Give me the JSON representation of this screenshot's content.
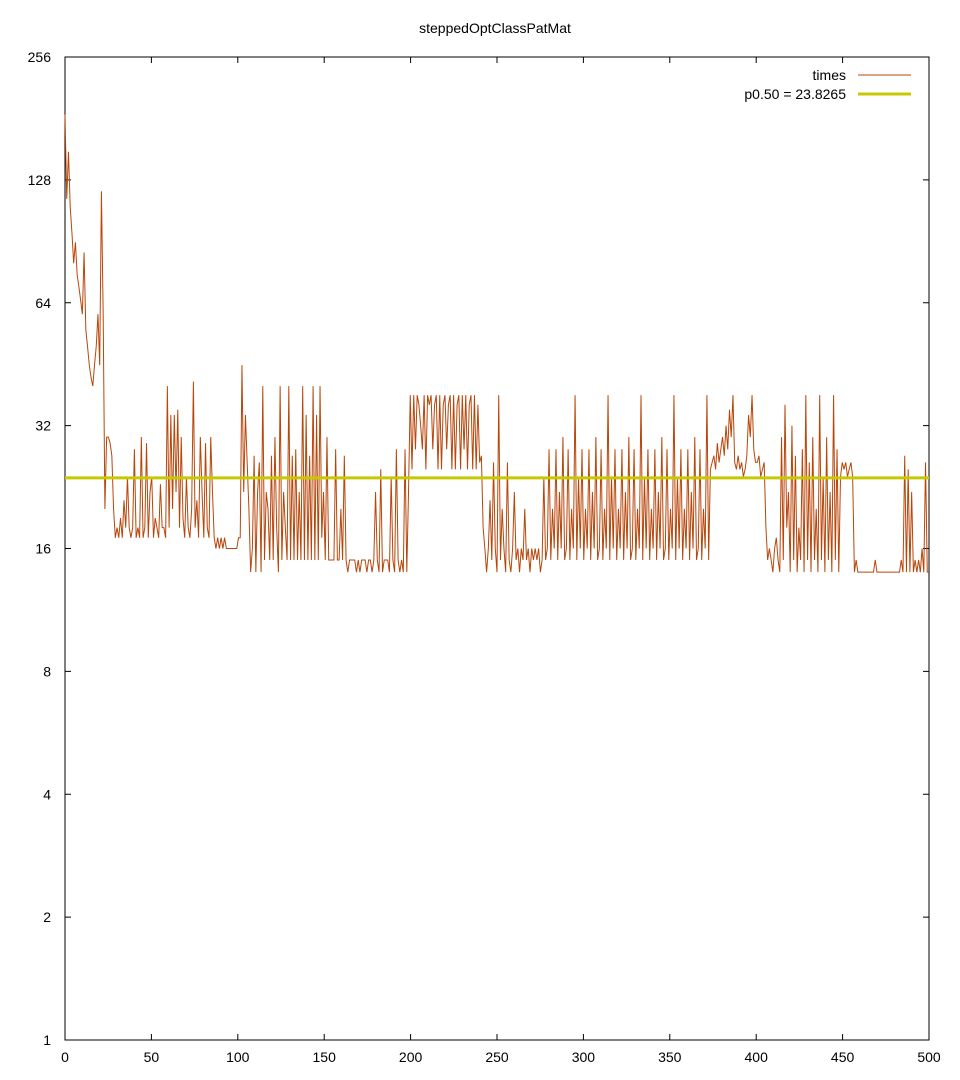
{
  "chart_data": {
    "type": "line",
    "title": "steppedOptClassPatMat",
    "xlabel": "",
    "ylabel": "",
    "xlim": [
      0,
      500
    ],
    "ylim": [
      1,
      256
    ],
    "yscale": "log2",
    "x_ticks": [
      "0",
      "50",
      "100",
      "150",
      "200",
      "250",
      "300",
      "350",
      "400",
      "450",
      "500"
    ],
    "y_ticks": [
      "1",
      "2",
      "4",
      "8",
      "16",
      "32",
      "64",
      "128",
      "256"
    ],
    "grid": false,
    "legend_position": "top-right",
    "colors": {
      "times": "#b8460b",
      "median": "#c8c800"
    },
    "series": [
      {
        "name": "times",
        "color": "#b8460b",
        "values": [
          185,
          115,
          150,
          110,
          95,
          80,
          90,
          75,
          70,
          65,
          60,
          85,
          55,
          50,
          45,
          42,
          40,
          45,
          50,
          60,
          45,
          120,
          60,
          20,
          30,
          30,
          29,
          27,
          20,
          17,
          18,
          17,
          19,
          17,
          21,
          18,
          24,
          18,
          17,
          18,
          28,
          17,
          18,
          17,
          30,
          17,
          18,
          29,
          17,
          22,
          24,
          17,
          19,
          18,
          17,
          23,
          18,
          18,
          17,
          40,
          18,
          34,
          20,
          34,
          22,
          35,
          18,
          30,
          19,
          17,
          24,
          18,
          17,
          20,
          41,
          18,
          21,
          17,
          30,
          22,
          17,
          29,
          18,
          17,
          30,
          22,
          17,
          16,
          17,
          16,
          17,
          16,
          17,
          16,
          16,
          16,
          16,
          16,
          16,
          16,
          17,
          17,
          45,
          22,
          34,
          26,
          20,
          14,
          16,
          27,
          14,
          22,
          26,
          14,
          40,
          15,
          22,
          20,
          15,
          27,
          15,
          30,
          18,
          14,
          40,
          15,
          22,
          18,
          15,
          40,
          15,
          27,
          15,
          28,
          15,
          22,
          15,
          40,
          15,
          34,
          15,
          27,
          15,
          40,
          15,
          34,
          15,
          40,
          17,
          22,
          15,
          30,
          15,
          15,
          15,
          15,
          28,
          15,
          15,
          20,
          15,
          27,
          15,
          14,
          15,
          15,
          15,
          15,
          14,
          15,
          14,
          15,
          15,
          15,
          14,
          15,
          15,
          14,
          15,
          22,
          15,
          14,
          25,
          14,
          15,
          15,
          15,
          14,
          24,
          15,
          14,
          28,
          15,
          14,
          15,
          14,
          28,
          14,
          22,
          38,
          25,
          38,
          28,
          38,
          36,
          32,
          28,
          38,
          25,
          38,
          36,
          38,
          28,
          36,
          38,
          25,
          38,
          25,
          36,
          38,
          28,
          36,
          38,
          25,
          38,
          25,
          36,
          38,
          25,
          38,
          28,
          38,
          25,
          36,
          38,
          25,
          38,
          25,
          36,
          26,
          27,
          18,
          16,
          14,
          16,
          21,
          15,
          26,
          16,
          14,
          38,
          15,
          20,
          16,
          14,
          26,
          15,
          14,
          16,
          22,
          15,
          16,
          14,
          16,
          15,
          20,
          15,
          16,
          14,
          16,
          15,
          16,
          15,
          16,
          14,
          15,
          24,
          15,
          16,
          28,
          15,
          20,
          16,
          28,
          15,
          22,
          16,
          30,
          15,
          16,
          28,
          15,
          20,
          16,
          38,
          15,
          24,
          16,
          28,
          15,
          20,
          16,
          28,
          15,
          22,
          16,
          30,
          15,
          16,
          28,
          15,
          20,
          16,
          38,
          15,
          24,
          16,
          28,
          15,
          20,
          16,
          28,
          15,
          22,
          16,
          30,
          15,
          16,
          28,
          15,
          20,
          16,
          38,
          15,
          24,
          16,
          28,
          15,
          20,
          16,
          28,
          15,
          22,
          16,
          30,
          15,
          16,
          28,
          15,
          20,
          16,
          38,
          15,
          24,
          16,
          28,
          15,
          20,
          16,
          28,
          15,
          22,
          16,
          30,
          15,
          16,
          28,
          15,
          20,
          16,
          38,
          15,
          25,
          26,
          27,
          25,
          29,
          26,
          28,
          30,
          27,
          32,
          28,
          35,
          30,
          38,
          26,
          25,
          27,
          25,
          26,
          24,
          25,
          27,
          34,
          30,
          38,
          28,
          26,
          26,
          27,
          24,
          25,
          26,
          18,
          15,
          16,
          15,
          14,
          16,
          17,
          15,
          14,
          30,
          15,
          36,
          18,
          22,
          14,
          32,
          15,
          27,
          14,
          18,
          15,
          28,
          14,
          38,
          15,
          26,
          14,
          30,
          15,
          20,
          14,
          38,
          15,
          24,
          14,
          30,
          15,
          22,
          14,
          38,
          15,
          28,
          14,
          24,
          26,
          25,
          26,
          24,
          25,
          26,
          24,
          14,
          15,
          14,
          14,
          14,
          14,
          14,
          14,
          14,
          14,
          14,
          14,
          15,
          14,
          14,
          14,
          14,
          14,
          14,
          14,
          14,
          14,
          14,
          14,
          14,
          14,
          14,
          15,
          14,
          27,
          14,
          25,
          14,
          22,
          14,
          15,
          14,
          15,
          14,
          16,
          14,
          26,
          14,
          14
        ]
      },
      {
        "name": "p0.50 = 23.8265",
        "color": "#c8c800",
        "constant": 23.8265
      }
    ]
  }
}
